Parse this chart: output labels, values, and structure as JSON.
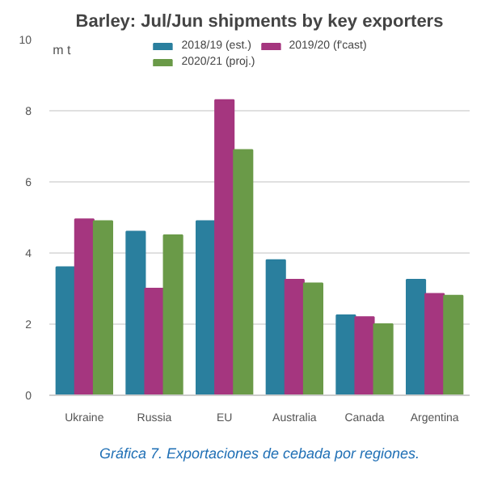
{
  "chart_data": {
    "type": "bar",
    "title": "Barley: Jul/Jun shipments by key exporters",
    "ylabel": "m t",
    "categories": [
      "Ukraine",
      "Russia",
      "EU",
      "Australia",
      "Canada",
      "Argentina"
    ],
    "series": [
      {
        "name": "2018/19 (est.)",
        "color": "#2a7f9e",
        "values": [
          3.6,
          4.6,
          4.9,
          3.8,
          2.25,
          3.25
        ]
      },
      {
        "name": "2019/20 (f'cast)",
        "color": "#a5367f",
        "values": [
          4.95,
          3.0,
          8.3,
          3.25,
          2.2,
          2.85
        ]
      },
      {
        "name": "2020/21 (proj.)",
        "color": "#6a9a48",
        "values": [
          4.9,
          4.5,
          6.9,
          3.15,
          2.0,
          2.8
        ]
      }
    ],
    "ylim": [
      0,
      10
    ],
    "yticks": [
      0,
      2,
      4,
      6,
      8,
      10
    ],
    "grid": "y",
    "legend": "top",
    "annotations": [
      "Gráfica 7. Exportaciones de cebada por regiones."
    ]
  }
}
